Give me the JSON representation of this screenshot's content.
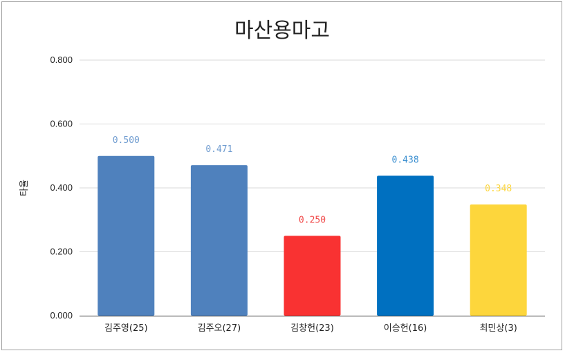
{
  "chart_data": {
    "type": "bar",
    "title": "마산용마고",
    "xlabel": "",
    "ylabel": "타율",
    "ylim": [
      0,
      0.8
    ],
    "yticks": [
      "0.000",
      "0.200",
      "0.400",
      "0.600",
      "0.800"
    ],
    "grid": true,
    "legend": "none",
    "categories": [
      "김주영(25)",
      "김주오(27)",
      "김창헌(23)",
      "이승헌(16)",
      "최민상(3)"
    ],
    "values": [
      0.5,
      0.471,
      0.25,
      0.438,
      0.348
    ],
    "value_labels": [
      "0.500",
      "0.471",
      "0.250",
      "0.438",
      "0.348"
    ],
    "bar_colors": [
      "#4f81bd",
      "#4f81bd",
      "#f93232",
      "#0070c0",
      "#fdd63c"
    ],
    "label_colors": [
      "#6f9cd0",
      "#6f9cd0",
      "#f04848",
      "#3b8fd0",
      "#fdd63c"
    ]
  }
}
